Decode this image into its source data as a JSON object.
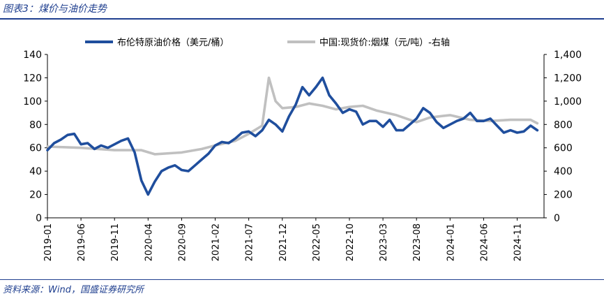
{
  "figure": {
    "title": "图表3：煤价与油价走势",
    "source": "资料来源：Wind，国盛证券研究所"
  },
  "colors": {
    "oil": "#1f4e9d",
    "coal": "#c0c0c0",
    "axis": "#000000",
    "accent": "#1f3f8f"
  },
  "chart_data": {
    "type": "line",
    "x_range": [
      "2019-01",
      "2025-03"
    ],
    "x_ticks": [
      "2019-01",
      "2019-06",
      "2019-11",
      "2020-04",
      "2020-09",
      "2021-02",
      "2021-07",
      "2021-12",
      "2022-05",
      "2022-10",
      "2023-03",
      "2023-08",
      "2024-01",
      "2024-06",
      "2024-11"
    ],
    "y_left": {
      "range": [
        0,
        140
      ],
      "ticks": [
        "0",
        "20",
        "40",
        "60",
        "80",
        "100",
        "120",
        "140"
      ]
    },
    "y_right": {
      "range": [
        0,
        1400
      ],
      "ticks": [
        "0",
        "200",
        "400",
        "600",
        "800",
        "1,000",
        "1,200",
        "1,400"
      ]
    },
    "legend_position": "top",
    "grid": false,
    "series": [
      {
        "name": "布伦特原油价格（美元/桶）",
        "axis": "left",
        "points": [
          [
            "2019-01",
            58
          ],
          [
            "2019-02",
            64
          ],
          [
            "2019-03",
            67
          ],
          [
            "2019-04",
            71
          ],
          [
            "2019-05",
            72
          ],
          [
            "2019-06",
            63
          ],
          [
            "2019-07",
            64
          ],
          [
            "2019-08",
            59
          ],
          [
            "2019-09",
            62
          ],
          [
            "2019-10",
            60
          ],
          [
            "2019-11",
            63
          ],
          [
            "2019-12",
            66
          ],
          [
            "2020-01",
            68
          ],
          [
            "2020-02",
            56
          ],
          [
            "2020-03",
            32
          ],
          [
            "2020-04",
            20
          ],
          [
            "2020-05",
            31
          ],
          [
            "2020-06",
            40
          ],
          [
            "2020-07",
            43
          ],
          [
            "2020-08",
            45
          ],
          [
            "2020-09",
            41
          ],
          [
            "2020-10",
            40
          ],
          [
            "2020-11",
            45
          ],
          [
            "2020-12",
            50
          ],
          [
            "2021-01",
            55
          ],
          [
            "2021-02",
            62
          ],
          [
            "2021-03",
            65
          ],
          [
            "2021-04",
            64
          ],
          [
            "2021-05",
            68
          ],
          [
            "2021-06",
            73
          ],
          [
            "2021-07",
            74
          ],
          [
            "2021-08",
            70
          ],
          [
            "2021-09",
            75
          ],
          [
            "2021-10",
            84
          ],
          [
            "2021-11",
            80
          ],
          [
            "2021-12",
            74
          ],
          [
            "2022-01",
            87
          ],
          [
            "2022-02",
            97
          ],
          [
            "2022-03",
            112
          ],
          [
            "2022-04",
            105
          ],
          [
            "2022-05",
            112
          ],
          [
            "2022-06",
            120
          ],
          [
            "2022-07",
            105
          ],
          [
            "2022-08",
            98
          ],
          [
            "2022-09",
            90
          ],
          [
            "2022-10",
            93
          ],
          [
            "2022-11",
            91
          ],
          [
            "2022-12",
            80
          ],
          [
            "2023-01",
            83
          ],
          [
            "2023-02",
            83
          ],
          [
            "2023-03",
            78
          ],
          [
            "2023-04",
            84
          ],
          [
            "2023-05",
            75
          ],
          [
            "2023-06",
            75
          ],
          [
            "2023-07",
            80
          ],
          [
            "2023-08",
            85
          ],
          [
            "2023-09",
            94
          ],
          [
            "2023-10",
            90
          ],
          [
            "2023-11",
            82
          ],
          [
            "2023-12",
            77
          ],
          [
            "2024-01",
            80
          ],
          [
            "2024-02",
            83
          ],
          [
            "2024-03",
            85
          ],
          [
            "2024-04",
            90
          ],
          [
            "2024-05",
            83
          ],
          [
            "2024-06",
            83
          ],
          [
            "2024-07",
            85
          ],
          [
            "2024-08",
            79
          ],
          [
            "2024-09",
            73
          ],
          [
            "2024-10",
            75
          ],
          [
            "2024-11",
            73
          ],
          [
            "2024-12",
            74
          ],
          [
            "2025-01",
            79
          ],
          [
            "2025-02",
            75
          ]
        ]
      },
      {
        "name": "中国:现货价:烟煤（元/吨）-右轴",
        "axis": "right",
        "points": [
          [
            "2019-01",
            610
          ],
          [
            "2019-06",
            600
          ],
          [
            "2019-11",
            580
          ],
          [
            "2020-03",
            580
          ],
          [
            "2020-05",
            545
          ],
          [
            "2020-09",
            560
          ],
          [
            "2020-12",
            590
          ],
          [
            "2021-02",
            620
          ],
          [
            "2021-05",
            660
          ],
          [
            "2021-07",
            720
          ],
          [
            "2021-09",
            790
          ],
          [
            "2021-10",
            1200
          ],
          [
            "2021-11",
            1000
          ],
          [
            "2021-12",
            940
          ],
          [
            "2022-02",
            950
          ],
          [
            "2022-04",
            980
          ],
          [
            "2022-06",
            960
          ],
          [
            "2022-08",
            930
          ],
          [
            "2022-10",
            950
          ],
          [
            "2022-12",
            960
          ],
          [
            "2023-02",
            920
          ],
          [
            "2023-05",
            880
          ],
          [
            "2023-08",
            820
          ],
          [
            "2023-10",
            860
          ],
          [
            "2024-01",
            880
          ],
          [
            "2024-04",
            840
          ],
          [
            "2024-07",
            830
          ],
          [
            "2024-10",
            840
          ],
          [
            "2025-01",
            840
          ],
          [
            "2025-02",
            810
          ]
        ]
      }
    ]
  }
}
